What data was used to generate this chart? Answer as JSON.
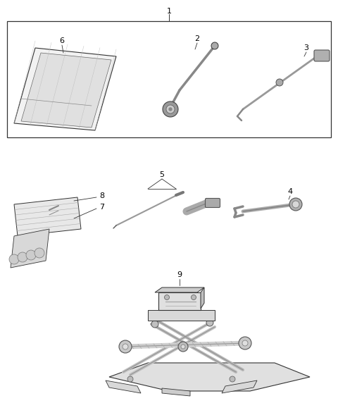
{
  "bg_color": "#ffffff",
  "line_color": "#333333",
  "fig_width": 4.8,
  "fig_height": 5.89,
  "dpi": 100
}
